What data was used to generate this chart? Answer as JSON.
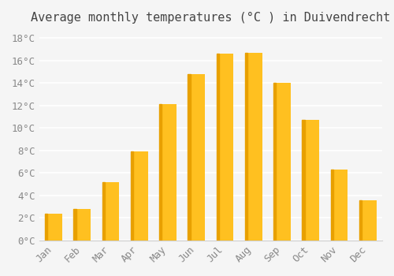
{
  "title": "Average monthly temperatures (°C ) in Duivendrecht",
  "months": [
    "Jan",
    "Feb",
    "Mar",
    "Apr",
    "May",
    "Jun",
    "Jul",
    "Aug",
    "Sep",
    "Oct",
    "Nov",
    "Dec"
  ],
  "values": [
    2.4,
    2.8,
    5.2,
    7.9,
    12.1,
    14.8,
    16.6,
    16.7,
    14.0,
    10.7,
    6.3,
    3.6
  ],
  "bar_color": "#FFC020",
  "bar_color_dark": "#E8A000",
  "yticks": [
    0,
    2,
    4,
    6,
    8,
    10,
    12,
    14,
    16,
    18
  ],
  "ytick_labels": [
    "0°C",
    "2°C",
    "4°C",
    "6°C",
    "8°C",
    "10°C",
    "12°C",
    "14°C",
    "16°C",
    "18°C"
  ],
  "ylim": [
    0,
    18.5
  ],
  "background_color": "#f5f5f5",
  "grid_color": "#ffffff",
  "title_fontsize": 11,
  "tick_fontsize": 9
}
